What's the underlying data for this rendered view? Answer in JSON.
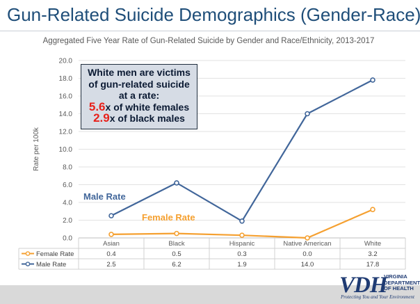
{
  "slide": {
    "title": "Gun-Related Suicide Demographics (Gender-Race)"
  },
  "callout": {
    "line1": "White men are victims",
    "line2": "of gun-related suicide",
    "line3": "at a rate:",
    "ratio1_value": "5.6",
    "ratio1_text": "x of white females",
    "ratio2_value": "2.9",
    "ratio2_text": "x of black males",
    "highlight_color": "#e8201a"
  },
  "logo": {
    "mark": "VDH",
    "dept_lines": [
      "VIRGINIA",
      "DEPARTMENT",
      "OF HEALTH"
    ],
    "tagline": "Protecting You and Your Environment",
    "color": "#1f3b73"
  },
  "chart_data": {
    "type": "line",
    "title": "Aggregated Five Year Rate of Gun-Related Suicide by Gender and Race/Ethnicity, 2013-2017",
    "ylabel": "Rate per 100k",
    "xlabel": "",
    "categories": [
      "Asian",
      "Black",
      "Hispanic",
      "Native American",
      "White"
    ],
    "ylim": [
      0,
      20
    ],
    "yticks": [
      "0.0",
      "2.0",
      "4.0",
      "6.0",
      "8.0",
      "10.0",
      "12.0",
      "14.0",
      "16.0",
      "18.0",
      "20.0"
    ],
    "grid": true,
    "legend": "data-table",
    "series": [
      {
        "name": "Female Rate",
        "values": [
          0.4,
          0.5,
          0.3,
          0.0,
          3.2
        ],
        "labels": [
          "0.4",
          "0.5",
          "0.3",
          "0.0",
          "3.2"
        ],
        "color": "#f5a030",
        "annotation": "Female Rate"
      },
      {
        "name": "Male Rate",
        "values": [
          2.5,
          6.2,
          1.9,
          14.0,
          17.8
        ],
        "labels": [
          "2.5",
          "6.2",
          "1.9",
          "14.0",
          "17.8"
        ],
        "color": "#41669a",
        "annotation": "Male Rate"
      }
    ]
  }
}
